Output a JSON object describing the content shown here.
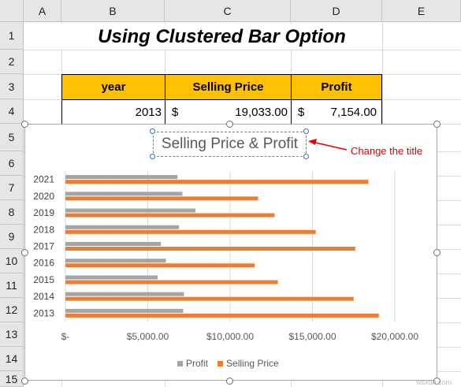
{
  "columns": [
    "A",
    "B",
    "C",
    "D",
    "E"
  ],
  "rows": [
    "1",
    "2",
    "3",
    "4",
    "5",
    "6",
    "7",
    "8",
    "9",
    "10",
    "11",
    "12",
    "13",
    "14",
    "15"
  ],
  "sheet_title": "Using Clustered Bar Option",
  "table": {
    "headers": [
      "year",
      "Selling Price",
      "Profit"
    ],
    "row": {
      "year": "2013",
      "price_symbol": "$",
      "price_value": "19,033.00",
      "profit_symbol": "$",
      "profit_value": "7,154.00"
    }
  },
  "annotation": {
    "text": "Change the title",
    "color": "#e00000"
  },
  "chart_data": {
    "type": "bar",
    "orientation": "horizontal",
    "title": "Selling Price & Profit",
    "categories": [
      "2021",
      "2020",
      "2019",
      "2018",
      "2017",
      "2016",
      "2015",
      "2014",
      "2013"
    ],
    "series": [
      {
        "name": "Profit",
        "color": "#a5a5a5",
        "values": [
          6800,
          7100,
          7900,
          6900,
          5800,
          6100,
          5600,
          7200,
          7154
        ]
      },
      {
        "name": "Selling Price",
        "color": "#ed7d31",
        "values": [
          18400,
          11700,
          12700,
          15200,
          17600,
          11500,
          12900,
          17500,
          19033
        ]
      }
    ],
    "xlim": [
      0,
      20000
    ],
    "ticks": [
      0,
      5000,
      10000,
      15000,
      20000
    ],
    "tick_labels": [
      "$-",
      "$5,000.00",
      "$10,000.00",
      "$15,000.00",
      "$20,000.00"
    ],
    "legend": "bottom",
    "grid": true
  },
  "watermark": "wsxdn.com"
}
